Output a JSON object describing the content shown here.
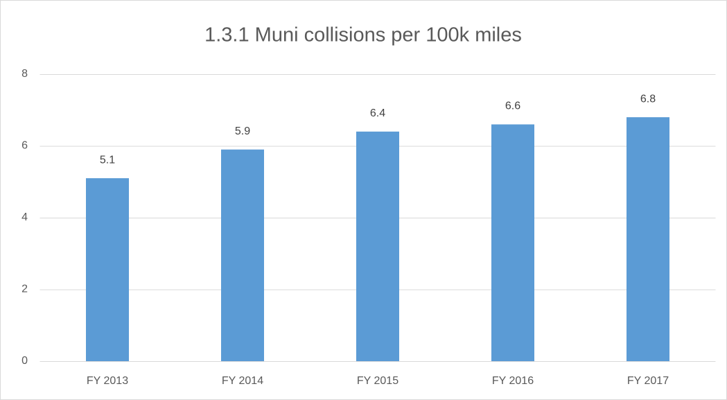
{
  "chart_data": {
    "type": "bar",
    "title": "1.3.1 Muni collisions per 100k miles",
    "categories": [
      "FY 2013",
      "FY 2014",
      "FY 2015",
      "FY 2016",
      "FY 2017"
    ],
    "values": [
      5.1,
      5.9,
      6.4,
      6.6,
      6.8
    ],
    "color": "#5b9bd5",
    "ylim": [
      0,
      8
    ],
    "yticks": [
      0,
      2,
      4,
      6,
      8
    ],
    "grid": true
  }
}
